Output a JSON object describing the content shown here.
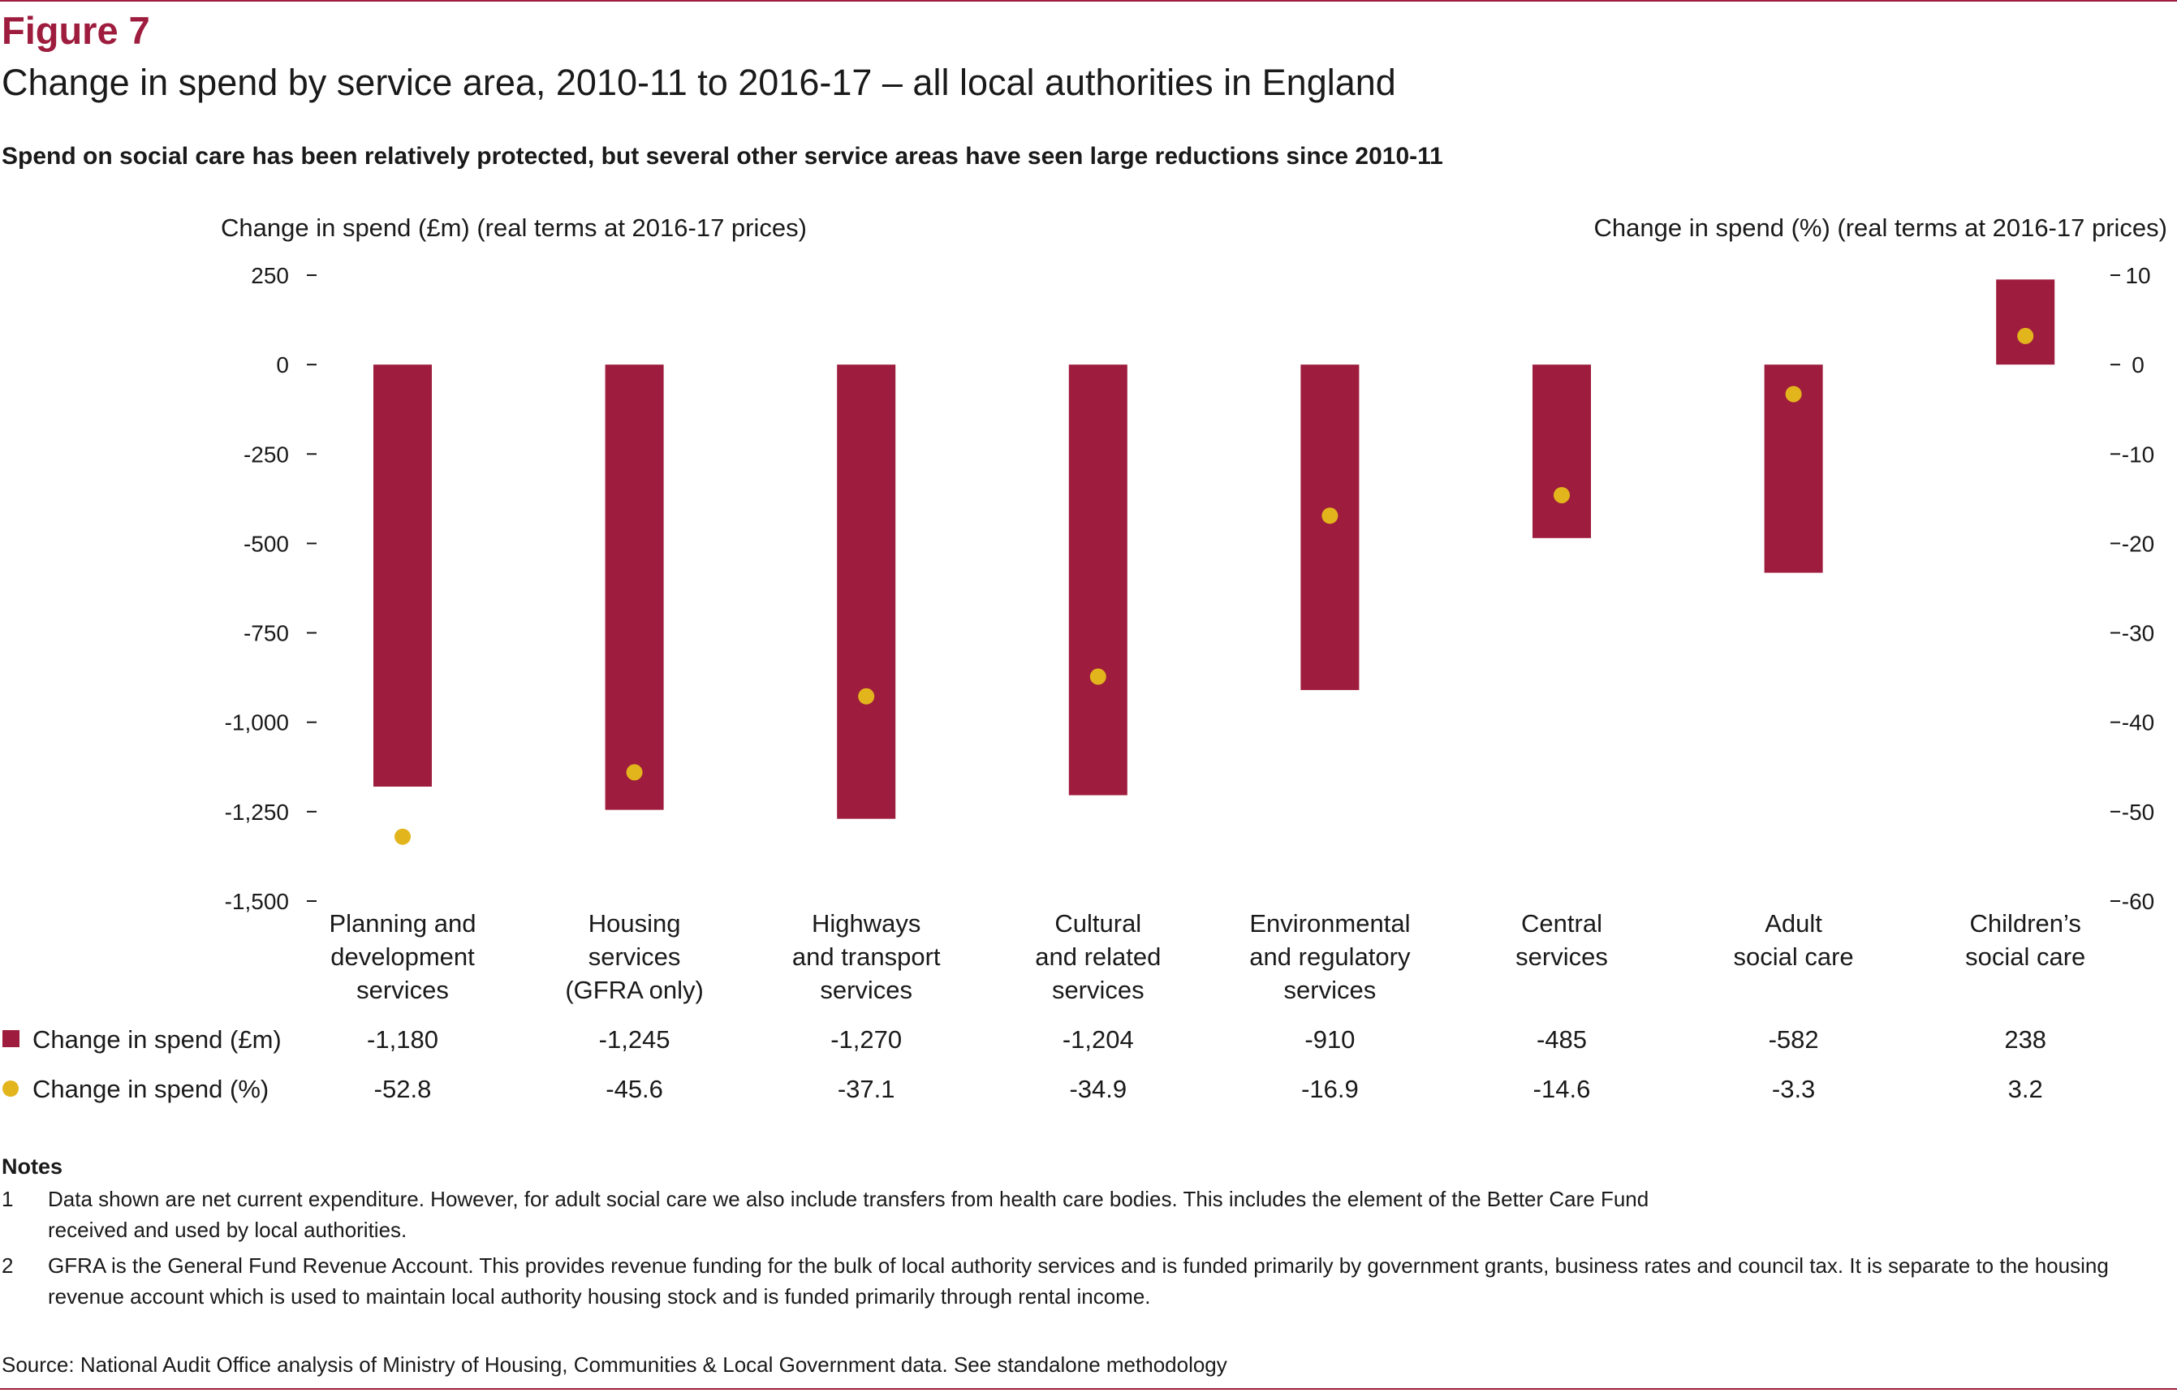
{
  "figure_label": "Figure 7",
  "title": "Change in spend by service area, 2010-11 to 2016-17 – all local authorities in England",
  "subtitle": "Spend on social care has been relatively protected, but several other service areas have seen large reductions since 2010-11",
  "colors": {
    "bar": "#9e1c3d",
    "dot": "#e3b51c",
    "text": "#1a1a1a"
  },
  "chart_data": {
    "type": "bar",
    "categories": [
      [
        "Planning and",
        "development",
        "services"
      ],
      [
        "Housing",
        "services",
        "(GFRA only)"
      ],
      [
        "Highways",
        "and transport",
        "services"
      ],
      [
        "Cultural",
        "and related",
        "services"
      ],
      [
        "Environmental",
        "and regulatory",
        "services"
      ],
      [
        "Central",
        "services"
      ],
      [
        "Adult",
        "social care"
      ],
      [
        "Children’s",
        "social care"
      ]
    ],
    "series": [
      {
        "name": "Change in spend (£m)",
        "type": "bar",
        "axis": "left",
        "values": [
          -1180,
          -1245,
          -1270,
          -1204,
          -910,
          -485,
          -582,
          238
        ],
        "labels": [
          "-1,180",
          "-1,245",
          "-1,270",
          "-1,204",
          "-910",
          "-485",
          "-582",
          "238"
        ]
      },
      {
        "name": "Change in spend (%)",
        "type": "scatter",
        "axis": "right",
        "values": [
          -52.8,
          -45.6,
          -37.1,
          -34.9,
          -16.9,
          -14.6,
          -3.3,
          3.2
        ],
        "labels": [
          "-52.8",
          "-45.6",
          "-37.1",
          "-34.9",
          "-16.9",
          "-14.6",
          "-3.3",
          "3.2"
        ]
      }
    ],
    "ylabel_left": "Change in spend (£m) (real terms at 2016-17 prices)",
    "ylabel_right": "Change in spend (%) (real terms at 2016-17 prices)",
    "ylim_left": [
      -1500,
      250
    ],
    "ylim_right": [
      -60,
      10
    ],
    "yticks_left": [
      250,
      0,
      -250,
      -500,
      -750,
      -1000,
      -1250,
      -1500
    ],
    "yticks_left_labels": [
      "250",
      "0",
      "-250",
      "-500",
      "-750",
      "-1,000",
      "-1,250",
      "-1,500"
    ],
    "yticks_right": [
      10,
      0,
      -10,
      -20,
      -30,
      -40,
      -50,
      -60
    ],
    "yticks_right_labels": [
      "10",
      "0",
      "-10",
      "-20",
      "-30",
      "-40",
      "-50",
      "-60"
    ],
    "grid": false,
    "legend": "bottom-left, table rows"
  },
  "notes": {
    "heading": "Notes",
    "items": [
      {
        "num": "1",
        "text": "Data shown are net current expenditure. However, for adult social care we also include transfers from health care bodies. This includes the element of the Better Care Fund received and used by local authorities."
      },
      {
        "num": "2",
        "text": "GFRA is the General Fund Revenue Account. This provides revenue funding for the bulk of local authority services and is funded primarily by government grants, business rates and council tax. It is separate to the housing revenue account which is used to maintain local authority housing stock and is funded primarily through rental income."
      }
    ]
  },
  "source": "Source: National Audit Office analysis of Ministry of Housing, Communities & Local Government data. See standalone methodology"
}
